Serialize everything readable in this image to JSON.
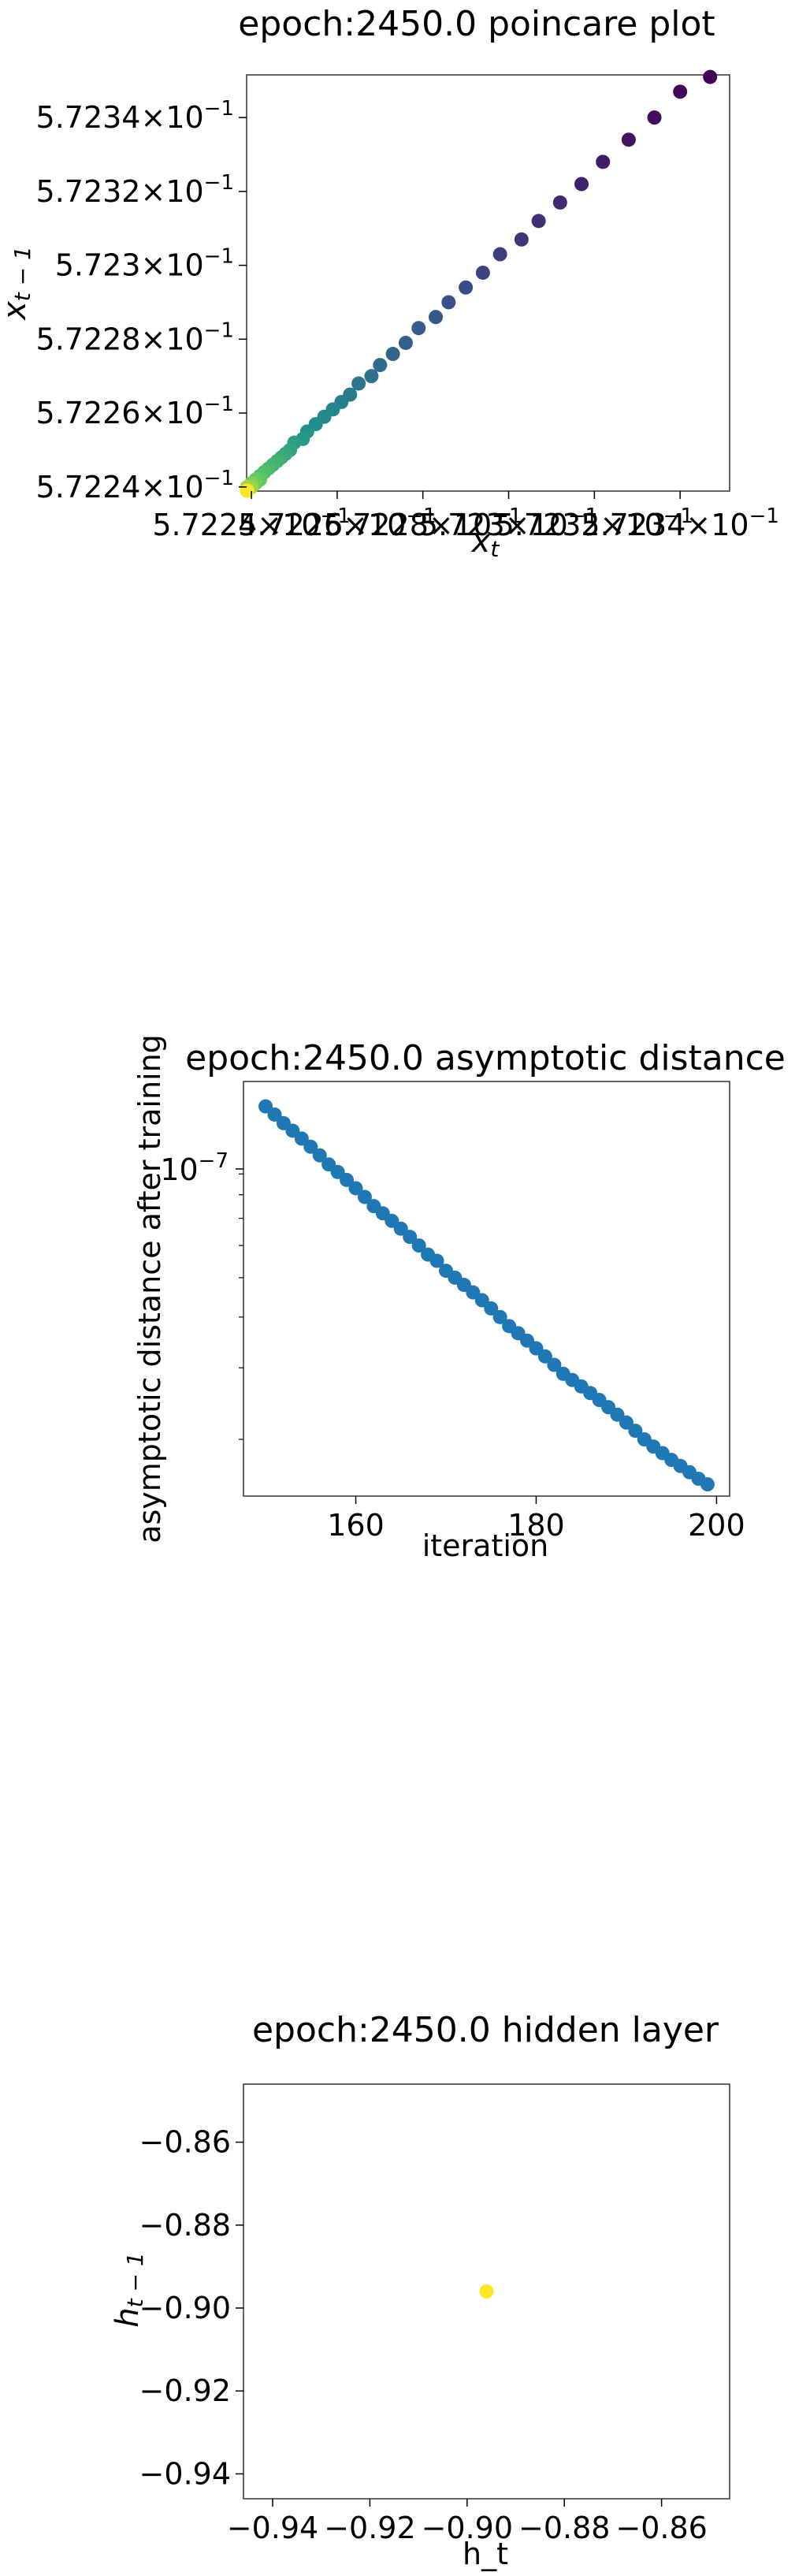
{
  "chart_data": [
    {
      "type": "scatter",
      "title": "epoch:2450.0 poincare plot",
      "xlabel": "x_t",
      "ylabel": "x_{t-1}",
      "colormap": "viridis",
      "color_order": "late points yellow, early points purple",
      "xlim": [
        0.57223888,
        0.57235155
      ],
      "ylim": [
        0.57223888,
        0.57235155
      ],
      "yticks": [
        {
          "value": 0.57224,
          "label": "5.7224 × 10^-1"
        },
        {
          "value": 0.57226,
          "label": "5.7226 × 10^-1"
        },
        {
          "value": 0.57228,
          "label": "5.7228 × 10^-1"
        },
        {
          "value": 0.5723,
          "label": "5.723 × 10^-1"
        },
        {
          "value": 0.57232,
          "label": "5.7232 × 10^-1"
        },
        {
          "value": 0.57234,
          "label": "5.7234 × 10^-1"
        }
      ],
      "xticks": [
        {
          "value": 0.57224,
          "label": "5.7224 × 10^-1"
        },
        {
          "value": 0.57226,
          "label": "5.7226 × 10^-1"
        },
        {
          "value": 0.57228,
          "label": "5.7228 × 10^-1"
        },
        {
          "value": 0.5723,
          "label": "5.723 × 10^-1"
        },
        {
          "value": 0.57232,
          "label": "5.7232 × 10^-1"
        },
        {
          "value": 0.57234,
          "label": "5.7234 × 10^-1"
        }
      ],
      "grid": false,
      "points": {
        "x": [
          0.572347,
          0.57234,
          0.572334,
          0.572328,
          0.572322,
          0.572317,
          0.572312,
          0.572307,
          0.572303,
          0.572298,
          0.572294,
          0.57229,
          0.572286,
          0.572283,
          0.572279,
          0.572276,
          0.572273,
          0.57227,
          0.572268,
          0.572265,
          0.572263,
          0.572261,
          0.572259,
          0.572257,
          0.572255,
          0.572253,
          0.572252,
          0.57225,
          0.572249,
          0.572248,
          0.572247,
          0.572246,
          0.572245,
          0.572244,
          0.572243,
          0.572242,
          0.572242,
          0.572241,
          0.572241,
          0.57224,
          0.57224,
          0.57224,
          0.572239,
          0.572239,
          0.572239,
          0.572239,
          0.572239,
          0.572239,
          0.572239,
          0.572239
        ],
        "y": [
          0.572351,
          0.572347,
          0.57234,
          0.572334,
          0.572328,
          0.572322,
          0.572317,
          0.572312,
          0.572307,
          0.572303,
          0.572298,
          0.572294,
          0.57229,
          0.572286,
          0.572283,
          0.572279,
          0.572276,
          0.572273,
          0.57227,
          0.572268,
          0.572265,
          0.572263,
          0.572261,
          0.572259,
          0.572257,
          0.572255,
          0.572253,
          0.572252,
          0.57225,
          0.572249,
          0.572248,
          0.572247,
          0.572246,
          0.572245,
          0.572244,
          0.572243,
          0.572242,
          0.572242,
          0.572241,
          0.572241,
          0.57224,
          0.57224,
          0.57224,
          0.572239,
          0.572239,
          0.572239,
          0.572239,
          0.572239,
          0.572239,
          0.572239
        ]
      }
    },
    {
      "type": "scatter",
      "title": "epoch:2450.0 asymptotic distance",
      "xlabel": "iteration",
      "ylabel": "asymptotic distance after training",
      "yscale": "log",
      "color": "#1f77b4",
      "xlim": [
        147.55,
        201.45
      ],
      "ylim": [
        1.45e-08,
        1.52e-07
      ],
      "xticks": [
        160,
        180,
        200
      ],
      "yticks": [
        {
          "value": 1e-07,
          "label": "10^-7"
        }
      ],
      "grid": false,
      "points": {
        "x": [
          150,
          151,
          152,
          153,
          154,
          155,
          156,
          157,
          158,
          159,
          160,
          161,
          162,
          163,
          164,
          165,
          166,
          167,
          168,
          169,
          170,
          171,
          172,
          173,
          174,
          175,
          176,
          177,
          178,
          179,
          180,
          181,
          182,
          183,
          184,
          185,
          186,
          187,
          188,
          189,
          190,
          191,
          192,
          193,
          194,
          195,
          196,
          197,
          198,
          199
        ],
        "y": [
          1.32e-07,
          1.26e-07,
          1.2e-07,
          1.15e-07,
          1.1e-07,
          1.05e-07,
          1e-07,
          9.5e-08,
          9.1e-08,
          8.7e-08,
          8.3e-08,
          7.9e-08,
          7.5e-08,
          7.2e-08,
          6.9e-08,
          6.6e-08,
          6.3e-08,
          6e-08,
          5.7e-08,
          5.5e-08,
          5.2e-08,
          5e-08,
          4.8e-08,
          4.6e-08,
          4.4e-08,
          4.2e-08,
          4e-08,
          3.8e-08,
          3.65e-08,
          3.5e-08,
          3.35e-08,
          3.2e-08,
          3.05e-08,
          2.9e-08,
          2.8e-08,
          2.7e-08,
          2.6e-08,
          2.5e-08,
          2.4e-08,
          2.3e-08,
          2.2e-08,
          2.1e-08,
          2e-08,
          1.92e-08,
          1.85e-08,
          1.78e-08,
          1.72e-08,
          1.66e-08,
          1.6e-08,
          1.55e-08
        ]
      }
    },
    {
      "type": "scatter",
      "title": "epoch:2450.0 hidden layer",
      "xlabel": "h_t",
      "ylabel": "h_{t-1}",
      "color": "#fde725",
      "xlim": [
        -0.946,
        -0.846
      ],
      "ylim": [
        -0.946,
        -0.846
      ],
      "xticks": [
        -0.94,
        -0.92,
        -0.9,
        -0.88,
        -0.86
      ],
      "yticks": [
        -0.94,
        -0.92,
        -0.9,
        -0.88,
        -0.86
      ],
      "tick_labels": [
        "−0.94",
        "−0.92",
        "−0.90",
        "−0.88",
        "−0.86"
      ],
      "grid": false,
      "points": {
        "x": [
          -0.896
        ],
        "y": [
          -0.896
        ]
      }
    }
  ]
}
